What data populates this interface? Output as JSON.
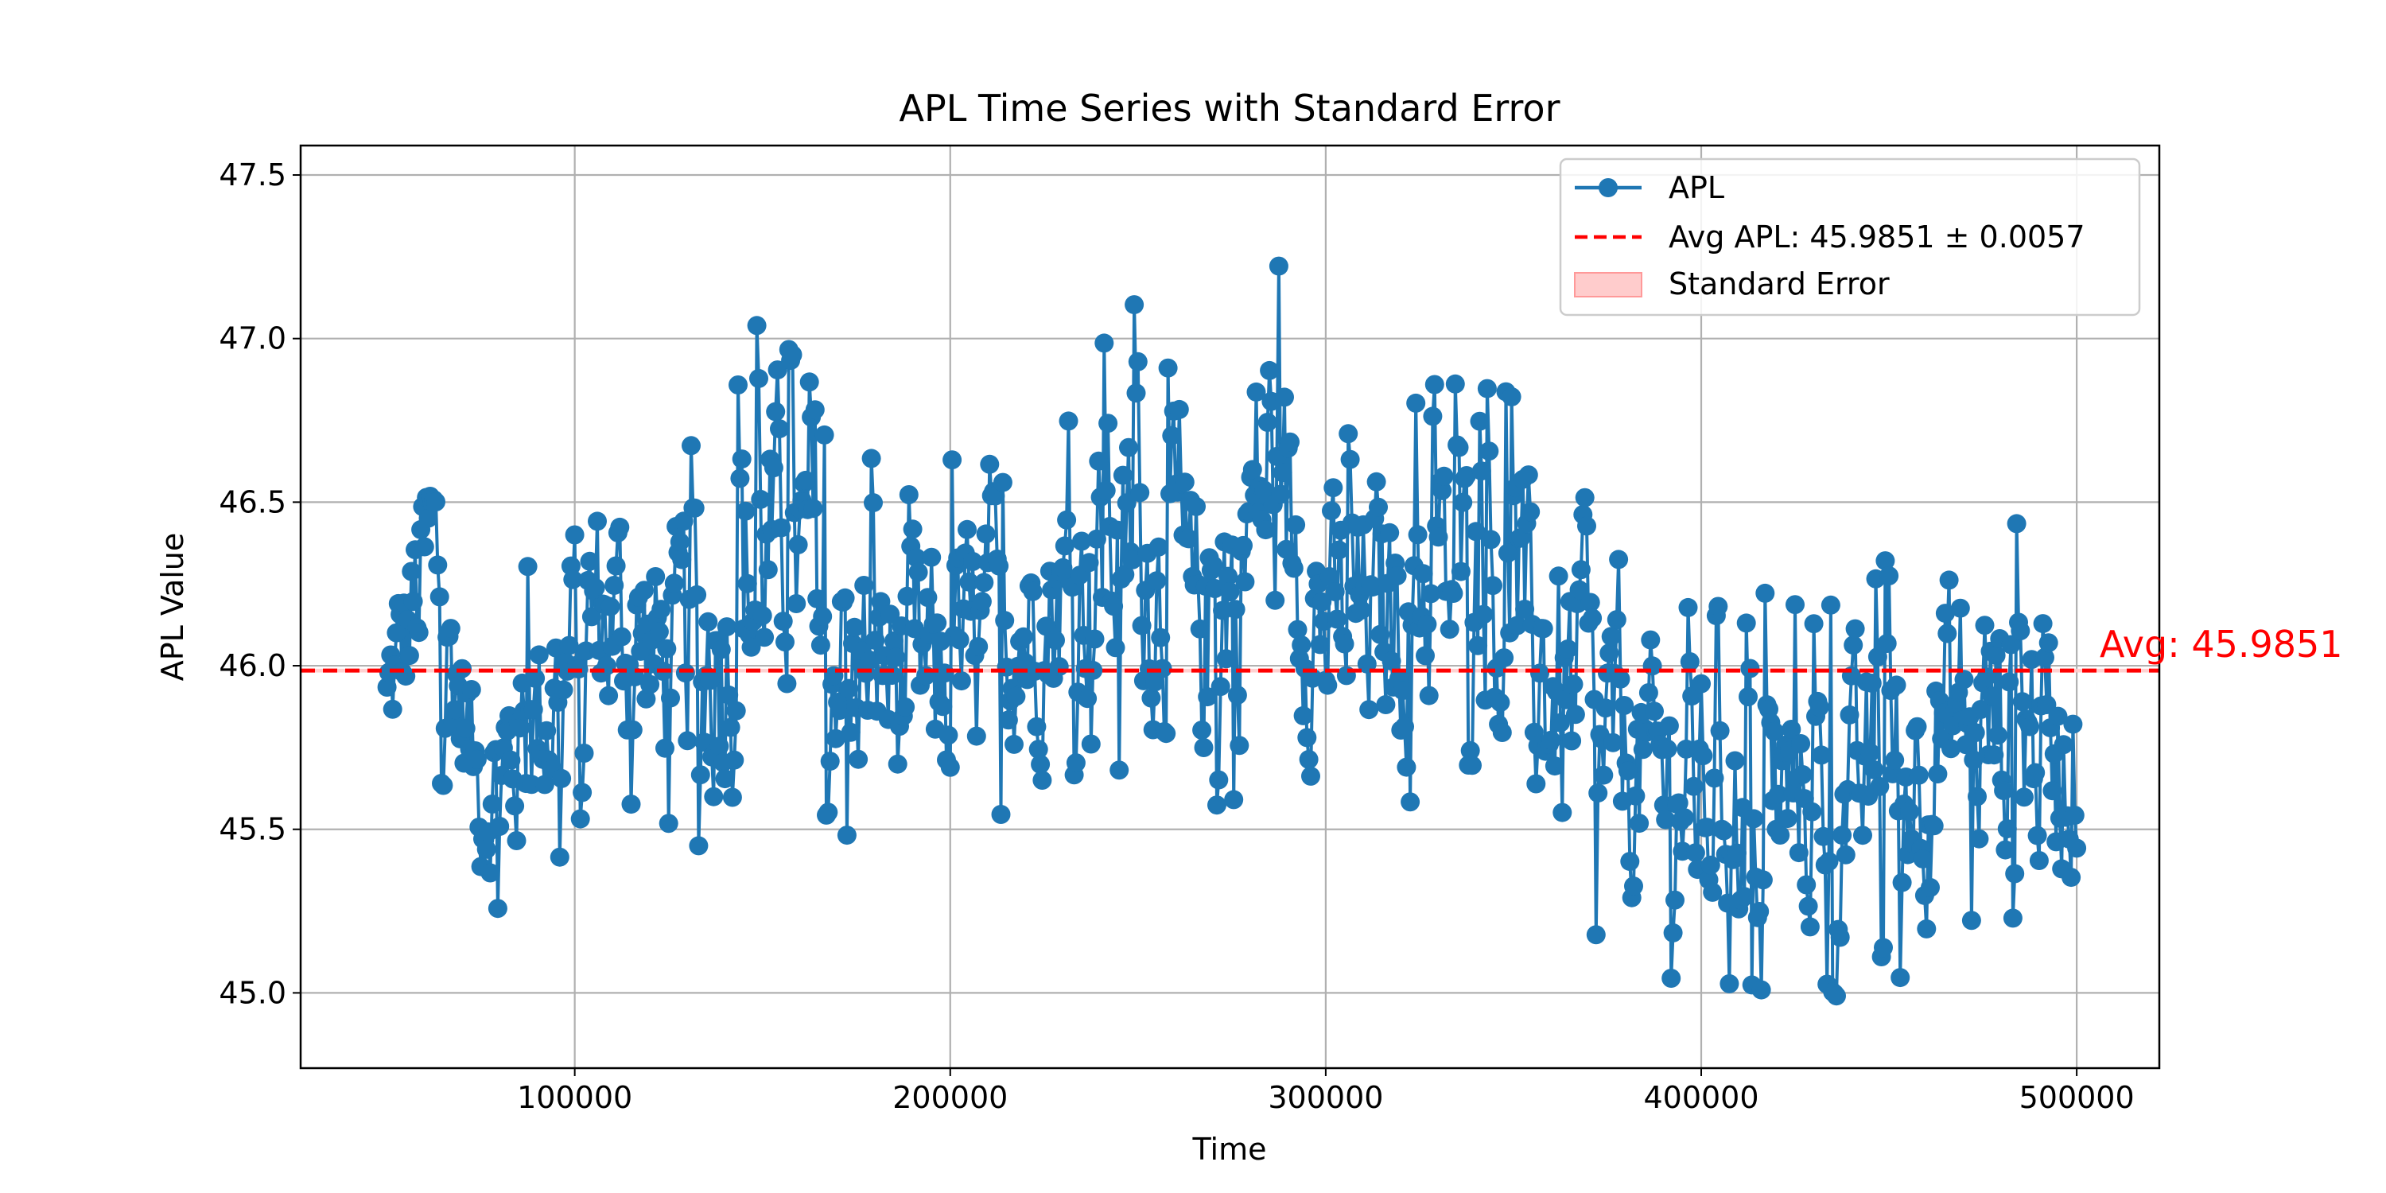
{
  "chart_data": {
    "type": "line",
    "title": "APL Time Series with Standard Error",
    "xlabel": "Time",
    "ylabel": "APL Value",
    "xlim": [
      27000,
      522000
    ],
    "ylim": [
      44.77,
      47.59
    ],
    "xticks": [
      100000,
      200000,
      300000,
      400000,
      500000
    ],
    "xtick_labels": [
      "100000",
      "200000",
      "300000",
      "400000",
      "500000"
    ],
    "yticks": [
      45.0,
      45.5,
      46.0,
      46.5,
      47.0,
      47.5
    ],
    "ytick_labels": [
      "45.0",
      "45.5",
      "46.0",
      "46.5",
      "47.0",
      "47.5"
    ],
    "grid": true,
    "legend_position": "upper right",
    "series": [
      {
        "name": "APL",
        "color": "#1f77b4",
        "marker": "circle",
        "x_range": [
          50000,
          500000
        ],
        "sampling_interval": 500,
        "points": 901,
        "envelope": {
          "description": "approximate visible band of the dense, noisy series read from the plot",
          "x": [
            50000,
            62000,
            75000,
            90000,
            105000,
            125000,
            140000,
            155000,
            175000,
            195000,
            215000,
            235000,
            250000,
            265000,
            285000,
            300000,
            320000,
            340000,
            360000,
            380000,
            410000,
            440000,
            470000,
            500000
          ],
          "low": [
            45.45,
            45.7,
            45.2,
            45.2,
            45.55,
            45.4,
            45.25,
            45.6,
            45.4,
            45.2,
            45.5,
            45.65,
            45.6,
            45.3,
            45.7,
            45.45,
            45.5,
            45.6,
            45.1,
            45.05,
            44.9,
            44.95,
            45.1,
            45.1
          ],
          "high": [
            46.3,
            46.98,
            46.0,
            46.45,
            46.82,
            46.6,
            46.98,
            47.12,
            46.63,
            46.65,
            46.65,
            46.9,
            47.15,
            46.8,
            47.45,
            46.75,
            46.85,
            46.88,
            46.78,
            46.3,
            46.23,
            46.2,
            46.63,
            46.4
          ]
        }
      },
      {
        "name": "Avg APL: 45.9851 ± 0.0057",
        "color": "#ff0000",
        "line_style": "dashed",
        "y": 45.9851
      },
      {
        "name": "Standard Error",
        "color": "#ff9999",
        "band": [
          45.9794,
          45.9908
        ]
      }
    ],
    "annotations": [
      {
        "text": "Avg: 45.9851",
        "x": 505000,
        "y": 45.9851,
        "color": "#ff0000"
      }
    ]
  }
}
